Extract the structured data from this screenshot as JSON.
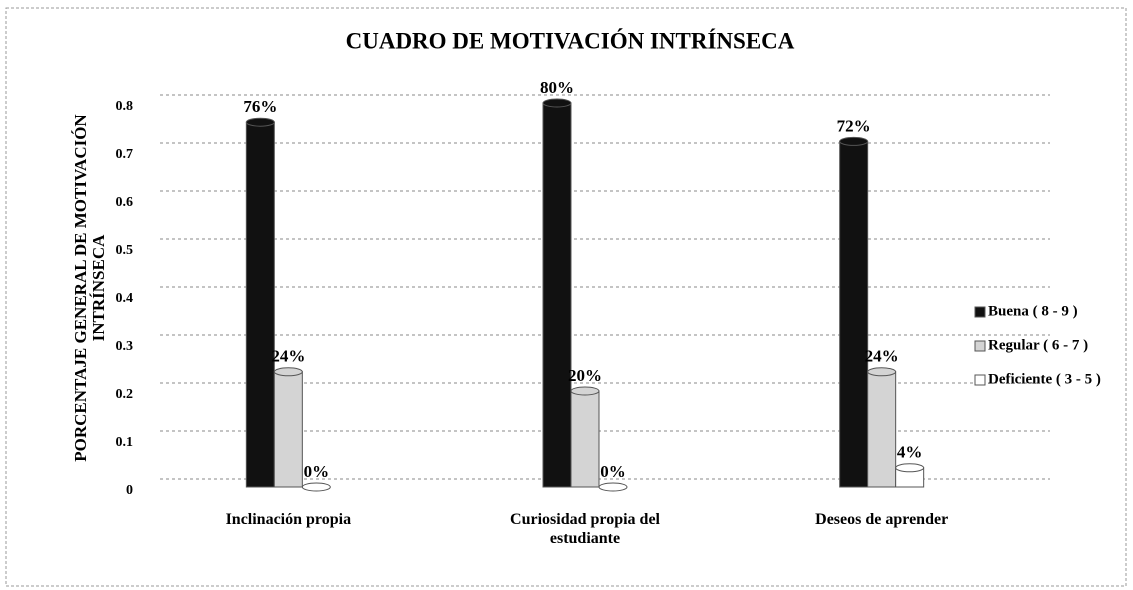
{
  "chart_data": {
    "type": "bar",
    "title": "CUADRO DE MOTIVACIÓN INTRÍNSECA",
    "y_label": "PORCENTAJE GENERAL DE MOTIVACIÓN INTRÍNSECA",
    "categories": [
      "Inclinación propia",
      "Curiosidad propia del estudiante",
      "Deseos de aprender"
    ],
    "series": [
      {
        "name": "Buena ( 8 - 9 )",
        "color": "#111111",
        "values": [
          0.76,
          0.8,
          0.72
        ],
        "value_labels": [
          "76%",
          "80%",
          "72%"
        ]
      },
      {
        "name": "Regular ( 6 - 7 )",
        "color": "#d4d4d4",
        "values": [
          0.24,
          0.2,
          0.24
        ],
        "value_labels": [
          "24%",
          "20%",
          "24%"
        ]
      },
      {
        "name": "Deficiente ( 3 - 5 )",
        "color": "#ffffff",
        "values": [
          0,
          0,
          0.04
        ],
        "value_labels": [
          "0%",
          "0%",
          "4%"
        ]
      }
    ],
    "ylim": [
      0,
      0.8
    ],
    "yticks": [
      0,
      0.1,
      0.2,
      0.3,
      0.4,
      0.5,
      0.6,
      0.7,
      0.8
    ],
    "grid": true,
    "legend": "right"
  }
}
